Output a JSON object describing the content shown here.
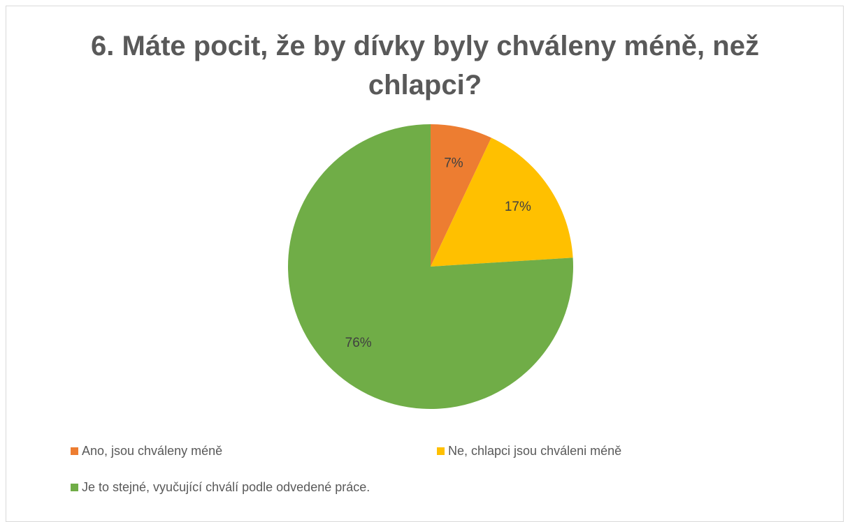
{
  "chart_data": {
    "type": "pie",
    "title_lines": [
      "6. Máte pocit, že by dívky byly chváleny méně, než",
      "chlapci?"
    ],
    "categories": [
      "Ano, jsou chváleny méně",
      "Ne, chlapci jsou chváleni méně",
      "Je to stejné, vyučující chválí podle odvedené práce."
    ],
    "values": [
      7,
      17,
      76
    ],
    "labels": [
      "7%",
      "17%",
      "76%"
    ],
    "colors": [
      "#ed7d31",
      "#ffc000",
      "#70ad47"
    ],
    "legend_position": "bottom"
  }
}
